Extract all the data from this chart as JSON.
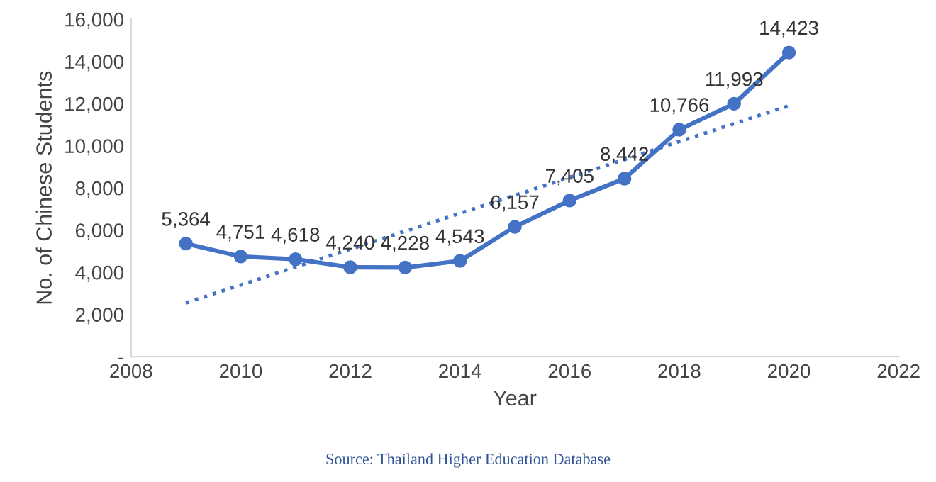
{
  "chart_data": {
    "type": "line",
    "xlabel": "Year",
    "ylabel": "No. of Chinese Students",
    "x": [
      2009,
      2010,
      2011,
      2012,
      2013,
      2014,
      2015,
      2016,
      2017,
      2018,
      2019,
      2020
    ],
    "series": [
      {
        "color": "#4472c4",
        "marker": "circle",
        "line_style": "solid",
        "values": [
          5364,
          4751,
          4618,
          4240,
          4228,
          4543,
          6157,
          7405,
          8442,
          10766,
          11993,
          14423
        ],
        "value_labels": [
          "5,364",
          "4,751",
          "4,618",
          "4,240",
          "4,228",
          "4,543",
          "6,157",
          "7,405",
          "8,442",
          "10,766",
          "11,993",
          "14,423"
        ]
      },
      {
        "type": "line",
        "color": "#4472c4",
        "marker": "none",
        "line_style": "dotted",
        "x": [
          2009,
          2020
        ],
        "values": [
          2550,
          11900
        ]
      }
    ],
    "xlim": [
      2008,
      2022
    ],
    "xticks": [
      2008,
      2010,
      2012,
      2014,
      2016,
      2018,
      2020,
      2022
    ],
    "ylim": [
      0,
      16000
    ],
    "yticks": [
      {
        "value": 0,
        "label": "-"
      },
      {
        "value": 2000,
        "label": "2,000"
      },
      {
        "value": 4000,
        "label": "4,000"
      },
      {
        "value": 6000,
        "label": "6,000"
      },
      {
        "value": 8000,
        "label": "8,000"
      },
      {
        "value": 10000,
        "label": "10,000"
      },
      {
        "value": 12000,
        "label": "12,000"
      },
      {
        "value": 14000,
        "label": "14,000"
      },
      {
        "value": 16000,
        "label": "16,000"
      }
    ],
    "grid": false,
    "legend": false,
    "annotations": [
      "Source: Thailand Higher Education Database"
    ]
  }
}
